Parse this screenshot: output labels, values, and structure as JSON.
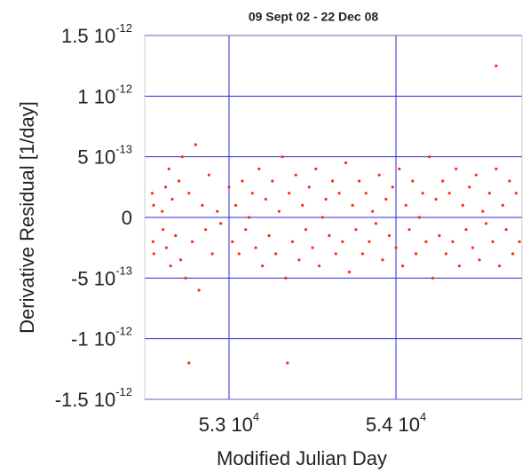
{
  "chart_data": {
    "type": "scatter",
    "title": "09 Sept 02 - 22 Dec 08",
    "x_label": "Modified Julian Day",
    "y_label": "Derivative Residual [1/day]",
    "xlim": [
      52495,
      54755
    ],
    "ylim": [
      -1.5e-12,
      1.5e-12
    ],
    "xticks": [
      {
        "value": 53000,
        "label": "5.3 10",
        "exponent": "4"
      },
      {
        "value": 54000,
        "label": "5.4 10",
        "exponent": "4"
      }
    ],
    "yticks": [
      {
        "value": -1.5e-12,
        "label": "-1.5 10",
        "exponent": "-12"
      },
      {
        "value": -1e-12,
        "label": "-1 10",
        "exponent": "-12"
      },
      {
        "value": -5e-13,
        "label": "-5 10",
        "exponent": "-13"
      },
      0,
      {
        "value": 5e-13,
        "label": "5 10",
        "exponent": "-13"
      },
      {
        "value": 1e-12,
        "label": "1 10",
        "exponent": "-12"
      },
      {
        "value": 1.5e-12,
        "label": "1.5 10",
        "exponent": "-12"
      }
    ],
    "grid": true,
    "grid_color": "#2b2bd6",
    "series": [
      {
        "color": "#ff2a10",
        "x": [
          52540,
          52545,
          52548,
          52550,
          52600,
          52605,
          52620,
          52625,
          52640,
          52650,
          52660,
          52680,
          52700,
          52710,
          52720,
          52740,
          52760,
          52780,
          52800,
          52820,
          52840,
          52860,
          52880,
          52900,
          52930,
          52950,
          53000,
          53020,
          53040,
          53060,
          53080,
          53100,
          53120,
          53140,
          53160,
          53180,
          53200,
          53220,
          53240,
          53260,
          53280,
          53300,
          53320,
          53340,
          53360,
          53380,
          53400,
          53420,
          53440,
          53460,
          53480,
          53500,
          53520,
          53540,
          53560,
          53580,
          53600,
          53620,
          53640,
          53660,
          53680,
          53700,
          53720,
          53740,
          53760,
          53780,
          53800,
          53820,
          53840,
          53860,
          53880,
          53900,
          53920,
          53940,
          53960,
          53980,
          54000,
          54020,
          54040,
          54060,
          54080,
          54100,
          54120,
          54140,
          54160,
          54180,
          54200,
          54220,
          54240,
          54260,
          54280,
          54300,
          54320,
          54340,
          54360,
          54380,
          54400,
          54420,
          54440,
          54460,
          54480,
          54500,
          54520,
          54540,
          54560,
          54580,
          54600,
          54620,
          54640,
          54660,
          54680,
          54700,
          54720,
          54740,
          54600,
          53350,
          52760
        ],
        "values": [
          2e-13,
          -2e-13,
          1e-13,
          -3e-13,
          5e-14,
          -1e-13,
          2.5e-13,
          -2.5e-13,
          4e-13,
          -4e-13,
          1.5e-13,
          -1.5e-13,
          3e-13,
          -3.5e-13,
          5e-13,
          -5e-13,
          2e-13,
          -2e-13,
          6e-13,
          -6e-13,
          1e-13,
          -1e-13,
          3.5e-13,
          -3e-13,
          5e-14,
          -5e-14,
          2.5e-13,
          -2e-13,
          1e-13,
          -3e-13,
          3e-13,
          -1e-13,
          0,
          2e-13,
          -2.5e-13,
          4e-13,
          -4e-13,
          1.5e-13,
          -1.5e-13,
          3e-13,
          -3e-13,
          5e-14,
          5e-13,
          -5e-13,
          2e-13,
          -2e-13,
          3.5e-13,
          -3.5e-13,
          1e-13,
          -1e-13,
          2.5e-13,
          -2.5e-13,
          4e-13,
          -4e-13,
          0,
          1.5e-13,
          -1.5e-13,
          3e-13,
          -3e-13,
          2e-13,
          -2e-13,
          4.5e-13,
          -4.5e-13,
          1e-13,
          -1e-13,
          3e-13,
          -3e-13,
          2e-13,
          -2e-13,
          5e-14,
          -5e-14,
          3.5e-13,
          -3.5e-13,
          1.5e-13,
          -1.5e-13,
          2.5e-13,
          -2.5e-13,
          4e-13,
          -4e-13,
          1e-13,
          -1e-13,
          3e-13,
          -3e-13,
          0,
          2e-13,
          -2e-13,
          5e-13,
          -5e-13,
          1.5e-13,
          -1.5e-13,
          3e-13,
          -3e-13,
          2e-13,
          -2e-13,
          4e-13,
          -4e-13,
          1e-13,
          -1e-13,
          2.5e-13,
          -2.5e-13,
          3.5e-13,
          -3.5e-13,
          5e-14,
          -5e-14,
          2e-13,
          -2e-13,
          4e-13,
          -4e-13,
          1e-13,
          -1e-13,
          3e-13,
          -3e-13,
          2e-13,
          -2e-13,
          1.25e-12,
          -1.2e-12,
          -1.2e-12
        ]
      }
    ]
  }
}
